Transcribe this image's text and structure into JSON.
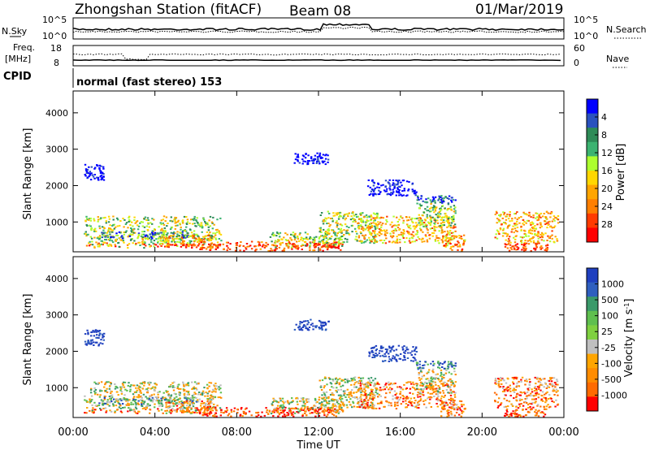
{
  "header": {
    "station": "Zhongshan Station (fitACF)",
    "beam": "Beam 08",
    "date": "01/Mar/2019"
  },
  "summary_panels": {
    "nsky_label": "N.Sky",
    "nsearch_label": "N.Search",
    "noise_ticks": [
      "10^5",
      "10^0"
    ],
    "freq_label_line1": "Freq.",
    "freq_label_line2": "[MHz]",
    "freq_ticks": [
      "18",
      "8"
    ],
    "nave_label": "Nave",
    "nave_ticks": [
      "60",
      "0"
    ],
    "cpid_label": "CPID",
    "cpid_value": "normal (fast stereo) 153"
  },
  "chart_data": [
    {
      "type": "heatmap",
      "name": "power-panel",
      "ylabel": "Slant Range [km]",
      "yticks": [
        "1000",
        "2000",
        "3000",
        "4000"
      ],
      "ylim": [
        180,
        4600
      ],
      "xlim": [
        0,
        24
      ],
      "xticks": [
        "00:00",
        "04:00",
        "08:00",
        "12:00",
        "16:00",
        "20:00",
        "00:00"
      ],
      "colorbar": {
        "label": "Power [dB]",
        "ticks": [
          "4",
          "8",
          "12",
          "16",
          "20",
          "24",
          "28"
        ],
        "colors": [
          "#0000ff",
          "#2a52be",
          "#2e8b57",
          "#3cb371",
          "#adff2f",
          "#ffd700",
          "#ffa500",
          "#ff7f00",
          "#ff3b00",
          "#ff0000"
        ]
      }
    },
    {
      "type": "heatmap",
      "name": "velocity-panel",
      "ylabel": "Slant Range [km]",
      "yticks": [
        "1000",
        "2000",
        "3000",
        "4000"
      ],
      "ylim": [
        180,
        4600
      ],
      "xlim": [
        0,
        24
      ],
      "xticks": [
        "00:00",
        "04:00",
        "08:00",
        "12:00",
        "16:00",
        "20:00",
        "00:00"
      ],
      "xlabel": "Time UT",
      "colorbar": {
        "label": "Velocity [m s",
        "label_exp": "-1",
        "label_close": "]",
        "ticks": [
          "1000",
          "500",
          "100",
          "25",
          "-25",
          "-100",
          "-500",
          "-1000"
        ],
        "colors": [
          "#1f3fbf",
          "#2f5fbf",
          "#3a9a6a",
          "#5fbf4f",
          "#7fd040",
          "#bfbfbf",
          "#ffa500",
          "#ff8c00",
          "#ff6a00",
          "#ff0000"
        ]
      }
    }
  ]
}
